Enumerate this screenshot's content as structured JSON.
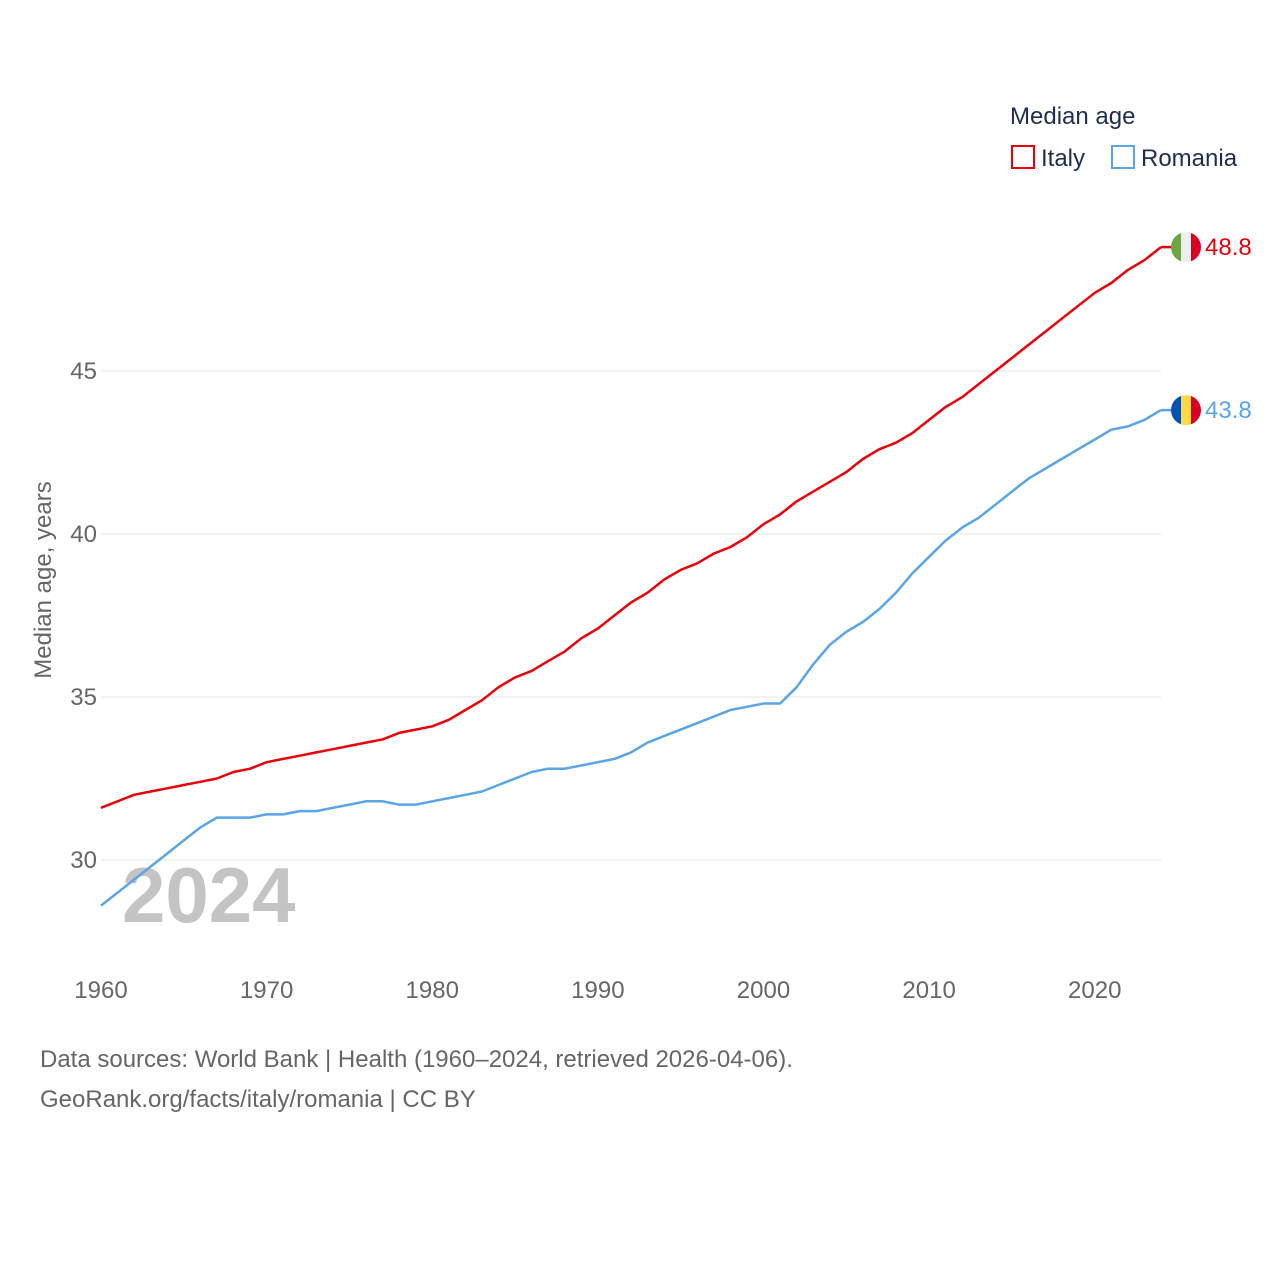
{
  "chart_data": {
    "type": "line",
    "legend_title": "Median age",
    "ylabel": "Median age, years",
    "xlabel": "",
    "year_label": "2024",
    "ylim": [
      27.5,
      50
    ],
    "xlim": [
      1960,
      2024
    ],
    "yticks": [
      30,
      35,
      40,
      45
    ],
    "xticks": [
      1960,
      1970,
      1980,
      1990,
      2000,
      2010,
      2020
    ],
    "grid": true,
    "legend_position": "top-right",
    "x": [
      1960,
      1961,
      1962,
      1963,
      1964,
      1965,
      1966,
      1967,
      1968,
      1969,
      1970,
      1971,
      1972,
      1973,
      1974,
      1975,
      1976,
      1977,
      1978,
      1979,
      1980,
      1981,
      1982,
      1983,
      1984,
      1985,
      1986,
      1987,
      1988,
      1989,
      1990,
      1991,
      1992,
      1993,
      1994,
      1995,
      1996,
      1997,
      1998,
      1999,
      2000,
      2001,
      2002,
      2003,
      2004,
      2005,
      2006,
      2007,
      2008,
      2009,
      2010,
      2011,
      2012,
      2013,
      2014,
      2015,
      2016,
      2017,
      2018,
      2019,
      2020,
      2021,
      2022,
      2023,
      2024
    ],
    "series": [
      {
        "name": "Italy",
        "color": "#e8000b",
        "end_label": "48.8",
        "flag": "italy-flag-icon",
        "flag_colors": [
          "#6da544",
          "#eeeeee",
          "#d80027"
        ],
        "values": [
          31.6,
          31.8,
          32.0,
          32.1,
          32.2,
          32.3,
          32.4,
          32.5,
          32.7,
          32.8,
          33.0,
          33.1,
          33.2,
          33.3,
          33.4,
          33.5,
          33.6,
          33.7,
          33.9,
          34.0,
          34.1,
          34.3,
          34.6,
          34.9,
          35.3,
          35.6,
          35.8,
          36.1,
          36.4,
          36.8,
          37.1,
          37.5,
          37.9,
          38.2,
          38.6,
          38.9,
          39.1,
          39.4,
          39.6,
          39.9,
          40.3,
          40.6,
          41.0,
          41.3,
          41.6,
          41.9,
          42.3,
          42.6,
          42.8,
          43.1,
          43.5,
          43.9,
          44.2,
          44.6,
          45.0,
          45.4,
          45.8,
          46.2,
          46.6,
          47.0,
          47.4,
          47.7,
          48.1,
          48.4,
          48.8
        ]
      },
      {
        "name": "Romania",
        "color": "#5aa5e6",
        "end_label": "43.8",
        "flag": "romania-flag-icon",
        "flag_colors": [
          "#0052b4",
          "#ffda44",
          "#d80027"
        ],
        "values": [
          28.6,
          29.0,
          29.4,
          29.8,
          30.2,
          30.6,
          31.0,
          31.3,
          31.3,
          31.3,
          31.4,
          31.4,
          31.5,
          31.5,
          31.6,
          31.7,
          31.8,
          31.8,
          31.7,
          31.7,
          31.8,
          31.9,
          32.0,
          32.1,
          32.3,
          32.5,
          32.7,
          32.8,
          32.8,
          32.9,
          33.0,
          33.1,
          33.3,
          33.6,
          33.8,
          34.0,
          34.2,
          34.4,
          34.6,
          34.7,
          34.8,
          34.8,
          35.3,
          36.0,
          36.6,
          37.0,
          37.3,
          37.7,
          38.2,
          38.8,
          39.3,
          39.8,
          40.2,
          40.5,
          40.9,
          41.3,
          41.7,
          42.0,
          42.3,
          42.6,
          42.9,
          43.2,
          43.3,
          43.5,
          43.8
        ]
      }
    ]
  },
  "footer": {
    "sources": "Data sources: World Bank | Health (1960–2024, retrieved 2026-04-06).",
    "credit": "GeoRank.org/facts/italy/romania | CC BY"
  }
}
